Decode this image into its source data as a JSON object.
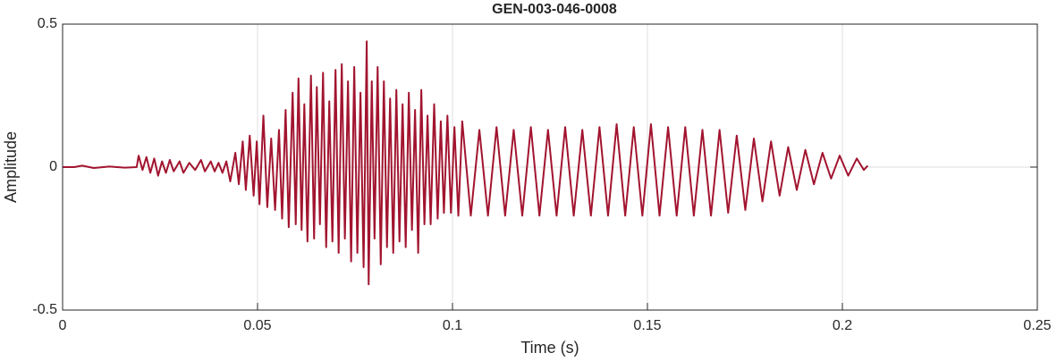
{
  "chart_data": {
    "type": "line",
    "title": "GEN-003-046-0008",
    "x_label": "Time (s)",
    "y_label": "Amplitude",
    "color": "#a2142f",
    "grid": true,
    "xlim": [
      0,
      0.25
    ],
    "xticks": [
      0,
      0.05,
      0.1,
      0.15,
      0.2,
      0.25
    ],
    "ylim": [
      -0.5,
      0.5
    ],
    "yticks": [
      -0.5,
      0,
      0.5
    ],
    "x": [
      0,
      0.003,
      0.005,
      0.008,
      0.012,
      0.016,
      0.019,
      0.0195,
      0.0205,
      0.0215,
      0.0225,
      0.0235,
      0.0245,
      0.0255,
      0.0265,
      0.0275,
      0.0285,
      0.03,
      0.031,
      0.0325,
      0.034,
      0.0355,
      0.0365,
      0.038,
      0.039,
      0.04,
      0.041,
      0.042,
      0.043,
      0.0443,
      0.0452,
      0.0462,
      0.047,
      0.048,
      0.049,
      0.0498,
      0.0505,
      0.0515,
      0.0525,
      0.0535,
      0.0545,
      0.0555,
      0.0563,
      0.0572,
      0.058,
      0.059,
      0.0598,
      0.0605,
      0.0613,
      0.062,
      0.0628,
      0.0637,
      0.0645,
      0.0652,
      0.066,
      0.0668,
      0.0676,
      0.0684,
      0.0692,
      0.07,
      0.0708,
      0.0716,
      0.0724,
      0.0732,
      0.074,
      0.0748,
      0.0756,
      0.0764,
      0.0772,
      0.078,
      0.0785,
      0.0793,
      0.08,
      0.0808,
      0.0816,
      0.0824,
      0.0832,
      0.084,
      0.0848,
      0.0856,
      0.0864,
      0.0872,
      0.088,
      0.0888,
      0.0896,
      0.0904,
      0.0912,
      0.092,
      0.0928,
      0.0936,
      0.0944,
      0.0953,
      0.0962,
      0.097,
      0.0978,
      0.0987,
      0.0996,
      0.1005,
      0.1015,
      0.1025,
      0.1047,
      0.1069,
      0.1091,
      0.1113,
      0.1135,
      0.1157,
      0.1179,
      0.1201,
      0.1223,
      0.1245,
      0.1267,
      0.1289,
      0.1311,
      0.1333,
      0.1355,
      0.1377,
      0.1399,
      0.1421,
      0.1443,
      0.1465,
      0.1487,
      0.1509,
      0.1531,
      0.1553,
      0.1575,
      0.1597,
      0.1619,
      0.1641,
      0.1663,
      0.1685,
      0.1707,
      0.1729,
      0.1751,
      0.1773,
      0.1795,
      0.1817,
      0.1839,
      0.1861,
      0.1883,
      0.1905,
      0.1927,
      0.1949,
      0.1971,
      0.1993,
      0.2015,
      0.2037,
      0.2055,
      0.2065
    ],
    "values": [
      0,
      0,
      0.005,
      -0.003,
      0.002,
      -0.002,
      0,
      0.04,
      -0.01,
      0.035,
      -0.02,
      0.03,
      -0.03,
      0.02,
      -0.02,
      0.025,
      -0.015,
      0.02,
      -0.02,
      0.015,
      -0.01,
      0.025,
      -0.015,
      0.02,
      -0.015,
      0.015,
      -0.02,
      0.02,
      -0.05,
      0.05,
      -0.06,
      0.09,
      -0.08,
      0.11,
      -0.1,
      0.09,
      -0.13,
      0.18,
      -0.14,
      0.1,
      -0.15,
      0.13,
      -0.18,
      0.2,
      -0.21,
      0.26,
      -0.2,
      0.31,
      -0.22,
      0.22,
      -0.26,
      0.32,
      -0.25,
      0.28,
      -0.2,
      0.33,
      -0.28,
      0.23,
      -0.26,
      0.34,
      -0.3,
      0.36,
      -0.25,
      0.3,
      -0.33,
      0.35,
      -0.3,
      0.26,
      -0.35,
      0.44,
      -0.41,
      0.3,
      -0.25,
      0.35,
      -0.34,
      0.3,
      -0.28,
      0.24,
      -0.3,
      0.27,
      -0.26,
      0.22,
      -0.28,
      0.26,
      -0.22,
      0.2,
      -0.3,
      0.27,
      -0.2,
      0.18,
      -0.2,
      0.22,
      -0.18,
      0.16,
      -0.16,
      0.18,
      -0.16,
      0.14,
      -0.17,
      0.16,
      -0.17,
      0.13,
      -0.17,
      0.14,
      -0.17,
      0.13,
      -0.17,
      0.14,
      -0.17,
      0.13,
      -0.17,
      0.14,
      -0.17,
      0.13,
      -0.17,
      0.14,
      -0.17,
      0.15,
      -0.17,
      0.14,
      -0.17,
      0.15,
      -0.17,
      0.14,
      -0.17,
      0.14,
      -0.17,
      0.13,
      -0.17,
      0.13,
      -0.16,
      0.11,
      -0.15,
      0.1,
      -0.12,
      0.09,
      -0.1,
      0.07,
      -0.08,
      0.06,
      -0.06,
      0.05,
      -0.04,
      0.04,
      -0.03,
      0.03,
      -0.01,
      0.005
    ]
  }
}
